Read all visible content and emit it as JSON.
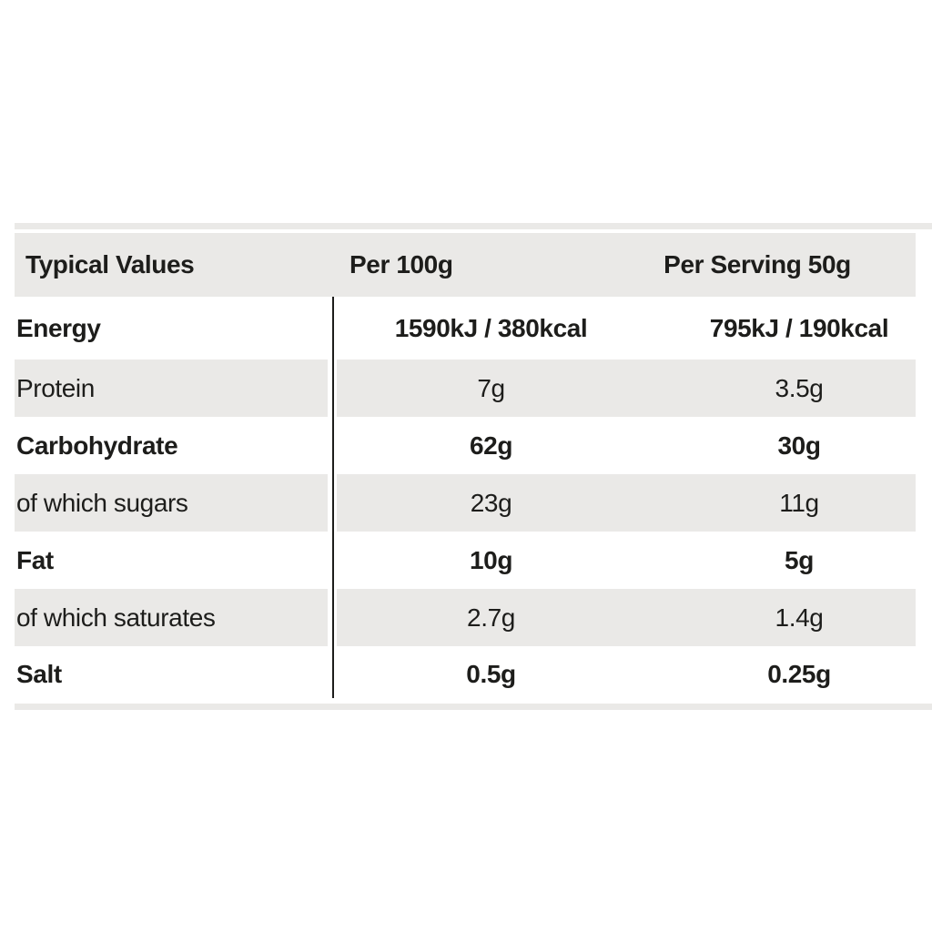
{
  "colors": {
    "row_shade": "#eae9e7",
    "row_plain": "#ffffff",
    "text": "#1d1d1b",
    "divider_line": "#1d1d1b"
  },
  "chart_data": {
    "type": "table",
    "columns": [
      "Typical Values",
      "Per 100g",
      "Per Serving 50g"
    ],
    "rows": [
      {
        "label": "Energy",
        "per_100g": "1590kJ / 380kcal",
        "per_serving_50g": "795kJ / 190kcal",
        "emphasis": true
      },
      {
        "label": "Protein",
        "per_100g": "7g",
        "per_serving_50g": "3.5g",
        "emphasis": false
      },
      {
        "label": "Carbohydrate",
        "per_100g": "62g",
        "per_serving_50g": "30g",
        "emphasis": true
      },
      {
        "label": "of which sugars",
        "per_100g": "23g",
        "per_serving_50g": "11g",
        "emphasis": false
      },
      {
        "label": "Fat",
        "per_100g": "10g",
        "per_serving_50g": "5g",
        "emphasis": true
      },
      {
        "label": "of which saturates",
        "per_100g": "2.7g",
        "per_serving_50g": "1.4g",
        "emphasis": false
      },
      {
        "label": "Salt",
        "per_100g": "0.5g",
        "per_serving_50g": "0.25g",
        "emphasis": true
      }
    ]
  }
}
